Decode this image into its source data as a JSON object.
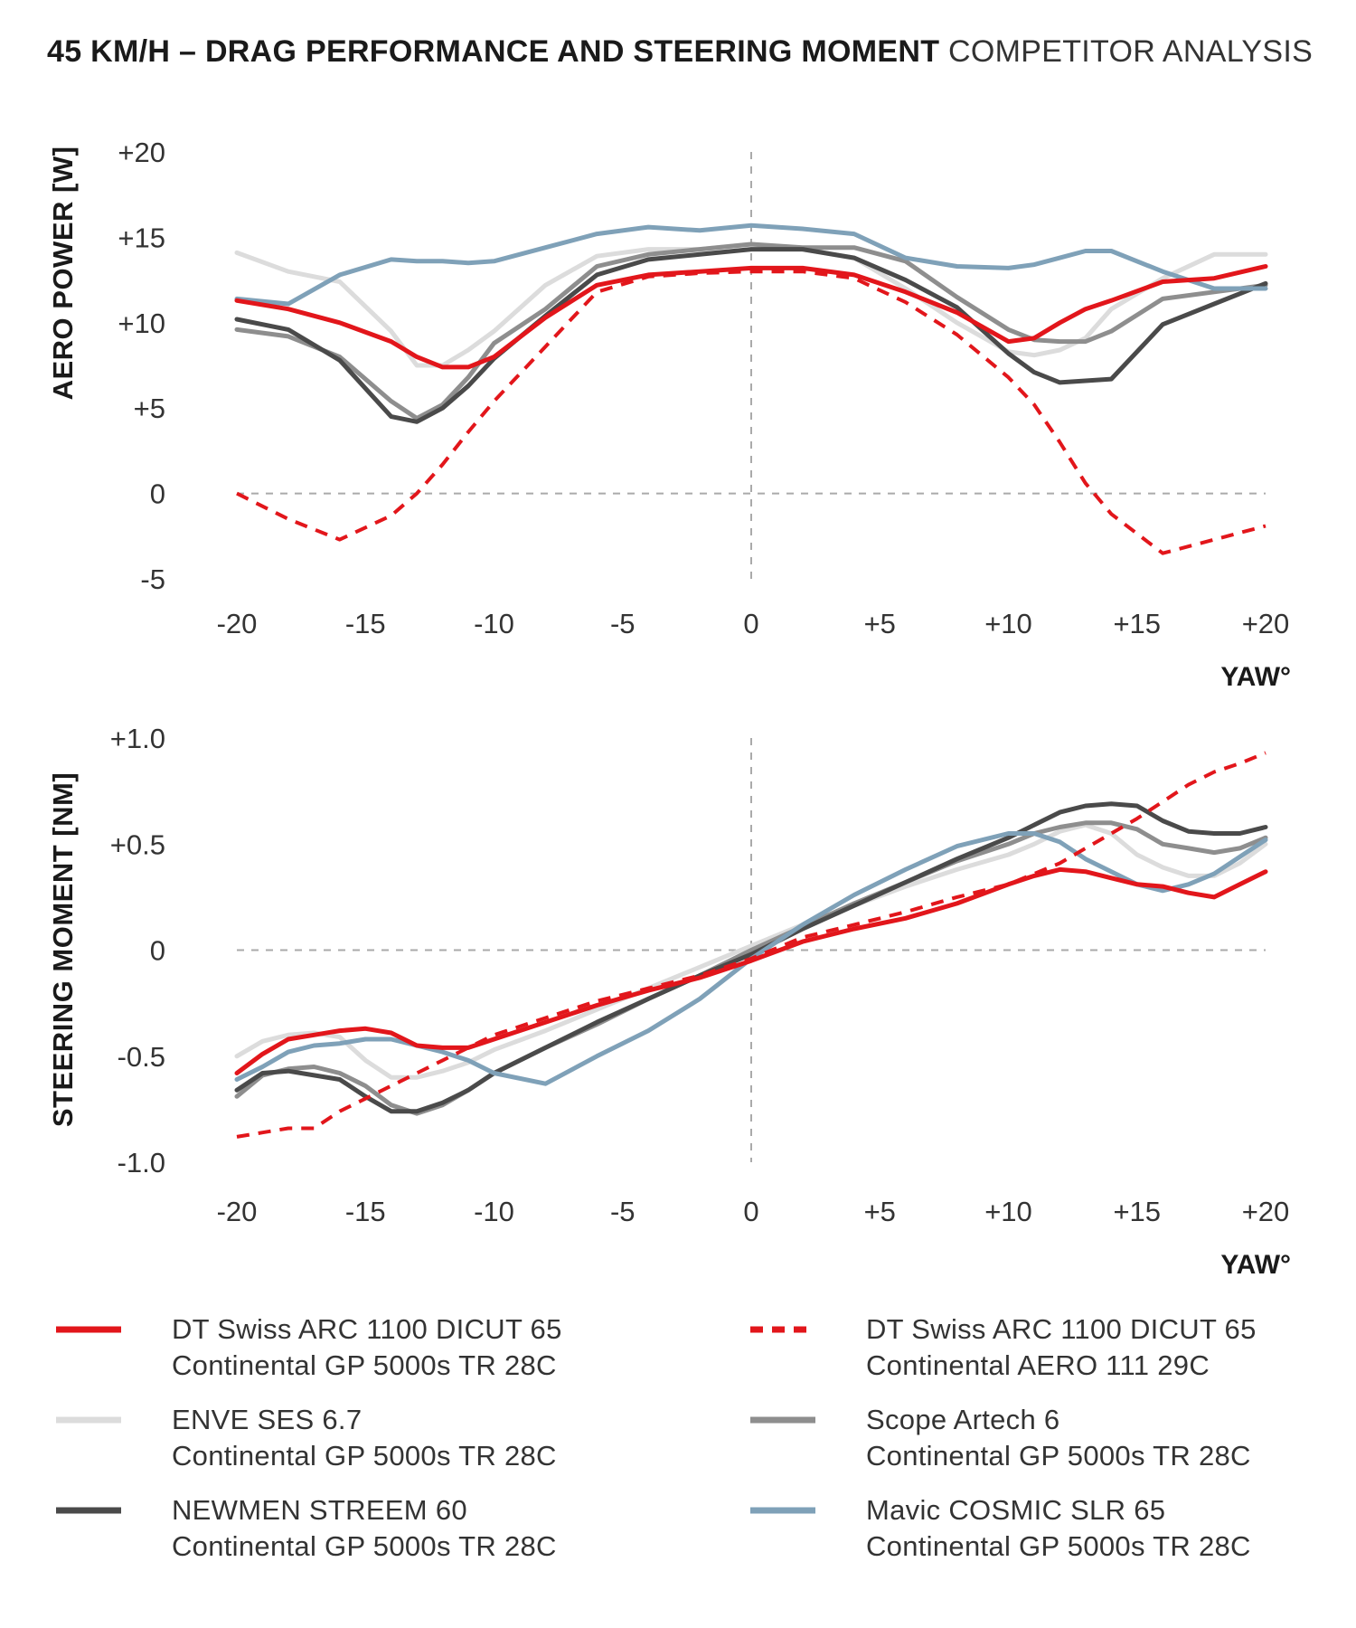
{
  "title": {
    "bold": "45 KM/H – DRAG PERFORMANCE AND STEERING MOMENT",
    "light": "COMPETITOR ANALYSIS"
  },
  "colors": {
    "dt_red": "#e2161b",
    "enve": "#dcdcdc",
    "scope": "#8e8e8e",
    "newmen": "#4a4a4a",
    "mavic": "#7fa1b8",
    "zero_line": "#aaaaaa"
  },
  "legend": [
    {
      "line1": "DT Swiss ARC 1100 DICUT 65",
      "line2": "Continental GP 5000s TR 28C",
      "color": "#e2161b",
      "dashed": false
    },
    {
      "line1": "DT Swiss ARC 1100 DICUT 65",
      "line2": "Continental AERO 111 29C",
      "color": "#e2161b",
      "dashed": true
    },
    {
      "line1": "ENVE SES 6.7",
      "line2": "Continental GP 5000s TR 28C",
      "color": "#dcdcdc",
      "dashed": false
    },
    {
      "line1": "Scope Artech 6",
      "line2": "Continental GP 5000s TR 28C",
      "color": "#8e8e8e",
      "dashed": false
    },
    {
      "line1": "NEWMEN STREEM 60",
      "line2": "Continental GP 5000s TR 28C",
      "color": "#4a4a4a",
      "dashed": false
    },
    {
      "line1": "Mavic COSMIC SLR 65",
      "line2": "Continental GP 5000s TR 28C",
      "color": "#7fa1b8",
      "dashed": false
    }
  ],
  "chart_data": [
    {
      "type": "line",
      "ylabel": "AERO POWER [W]",
      "xlabel": "YAW°",
      "xlim": [
        -20,
        20
      ],
      "ylim": [
        -5,
        20
      ],
      "x_ticks": [
        "-20",
        "-15",
        "-10",
        "-5",
        "0",
        "+5",
        "+10",
        "+15",
        "+20"
      ],
      "y_ticks": [
        "+20",
        "+15",
        "+10",
        "+5",
        "0",
        "-5"
      ],
      "x": [
        -20,
        -18,
        -16,
        -14,
        -13,
        -12,
        -11,
        -10,
        -8,
        -6,
        -4,
        -2,
        0,
        2,
        4,
        6,
        8,
        10,
        11,
        12,
        13,
        14,
        16,
        18,
        20
      ],
      "series": [
        {
          "name": "DT Swiss ARC 1100 DICUT 65 Continental GP 5000s TR 28C",
          "style": "solid",
          "color": "#e2161b",
          "values": [
            11.3,
            10.8,
            10.0,
            8.9,
            8.0,
            7.4,
            7.4,
            8.0,
            10.3,
            12.2,
            12.8,
            13.0,
            13.2,
            13.2,
            12.8,
            11.8,
            10.6,
            8.9,
            9.1,
            10.0,
            10.8,
            11.3,
            12.4,
            12.6,
            13.3
          ]
        },
        {
          "name": "DT Swiss ARC 1100 DICUT 65 Continental AERO 111 29C",
          "style": "dashed",
          "color": "#e2161b",
          "values": [
            0.0,
            -1.5,
            -2.7,
            -1.3,
            0.0,
            1.7,
            3.6,
            5.4,
            8.6,
            11.8,
            12.7,
            12.9,
            13.0,
            13.0,
            12.6,
            11.2,
            9.3,
            6.8,
            5.2,
            3.0,
            0.6,
            -1.2,
            -3.5,
            -2.7,
            -1.9
          ]
        },
        {
          "name": "ENVE SES 6.7 Continental GP 5000s TR 28C",
          "style": "solid",
          "color": "#dcdcdc",
          "values": [
            14.1,
            13.0,
            12.4,
            9.5,
            7.5,
            7.5,
            8.4,
            9.5,
            12.2,
            13.9,
            14.3,
            14.3,
            14.6,
            14.3,
            13.8,
            12.0,
            10.0,
            8.3,
            8.1,
            8.4,
            9.1,
            10.8,
            12.6,
            14.0,
            14.0
          ]
        },
        {
          "name": "Scope Artech 6 Continental GP 5000s TR 28C",
          "style": "solid",
          "color": "#8e8e8e",
          "values": [
            9.6,
            9.2,
            8.0,
            5.4,
            4.4,
            5.2,
            6.8,
            8.8,
            10.8,
            13.3,
            14.0,
            14.3,
            14.6,
            14.4,
            14.4,
            13.6,
            11.5,
            9.6,
            9.0,
            8.9,
            8.9,
            9.5,
            11.4,
            11.8,
            12.2
          ]
        },
        {
          "name": "NEWMEN STREEM 60 Continental GP 5000s TR 28C",
          "style": "solid",
          "color": "#4a4a4a",
          "values": [
            10.2,
            9.6,
            7.8,
            4.5,
            4.2,
            5.0,
            6.3,
            7.9,
            10.4,
            12.8,
            13.7,
            14.0,
            14.3,
            14.3,
            13.8,
            12.5,
            10.9,
            8.2,
            7.1,
            6.5,
            6.6,
            6.7,
            9.9,
            11.1,
            12.3
          ]
        },
        {
          "name": "Mavic COSMIC SLR 65 Continental GP 5000s TR 28C",
          "style": "solid",
          "color": "#7fa1b8",
          "values": [
            11.4,
            11.1,
            12.8,
            13.7,
            13.6,
            13.6,
            13.5,
            13.6,
            14.4,
            15.2,
            15.6,
            15.4,
            15.7,
            15.5,
            15.2,
            13.8,
            13.3,
            13.2,
            13.4,
            13.8,
            14.2,
            14.2,
            13.0,
            12.0,
            12.0
          ]
        }
      ]
    },
    {
      "type": "line",
      "ylabel": "STEERING MOMENT [NM]",
      "xlabel": "YAW°",
      "xlim": [
        -20,
        20
      ],
      "ylim": [
        -1.0,
        1.0
      ],
      "x_ticks": [
        "-20",
        "-15",
        "-10",
        "-5",
        "0",
        "+5",
        "+10",
        "+15",
        "+20"
      ],
      "y_ticks": [
        "+1.0",
        "+0.5",
        "0",
        "-0.5",
        "-1.0"
      ],
      "x": [
        -20,
        -19,
        -18,
        -17,
        -16,
        -15,
        -14,
        -13,
        -12,
        -11,
        -10,
        -8,
        -6,
        -4,
        -2,
        0,
        2,
        4,
        6,
        8,
        10,
        11,
        12,
        13,
        14,
        15,
        16,
        17,
        18,
        19,
        20
      ],
      "series": [
        {
          "name": "DT Swiss ARC 1100 DICUT 65 Continental GP 5000s TR 28C",
          "style": "solid",
          "color": "#e2161b",
          "values": [
            -0.58,
            -0.49,
            -0.42,
            -0.4,
            -0.38,
            -0.37,
            -0.39,
            -0.45,
            -0.46,
            -0.46,
            -0.42,
            -0.34,
            -0.26,
            -0.19,
            -0.13,
            -0.05,
            0.04,
            0.1,
            0.15,
            0.22,
            0.31,
            0.35,
            0.38,
            0.37,
            0.34,
            0.31,
            0.3,
            0.27,
            0.25,
            0.31,
            0.37
          ]
        },
        {
          "name": "DT Swiss ARC 1100 DICUT 65 Continental AERO 111 29C",
          "style": "dashed",
          "color": "#e2161b",
          "values": [
            -0.88,
            -0.86,
            -0.84,
            -0.84,
            -0.76,
            -0.7,
            -0.64,
            -0.58,
            -0.52,
            -0.46,
            -0.4,
            -0.32,
            -0.24,
            -0.18,
            -0.12,
            -0.04,
            0.06,
            0.12,
            0.18,
            0.25,
            0.31,
            0.36,
            0.41,
            0.48,
            0.55,
            0.62,
            0.7,
            0.78,
            0.84,
            0.88,
            0.93
          ]
        },
        {
          "name": "ENVE SES 6.7 Continental GP 5000s TR 28C",
          "style": "solid",
          "color": "#dcdcdc",
          "values": [
            -0.5,
            -0.43,
            -0.4,
            -0.39,
            -0.41,
            -0.52,
            -0.6,
            -0.6,
            -0.57,
            -0.53,
            -0.47,
            -0.38,
            -0.28,
            -0.18,
            -0.08,
            0.02,
            0.12,
            0.21,
            0.3,
            0.38,
            0.45,
            0.5,
            0.56,
            0.59,
            0.55,
            0.45,
            0.39,
            0.35,
            0.35,
            0.41,
            0.5
          ]
        },
        {
          "name": "Scope Artech 6 Continental GP 5000s TR 28C",
          "style": "solid",
          "color": "#8e8e8e",
          "values": [
            -0.69,
            -0.59,
            -0.56,
            -0.55,
            -0.58,
            -0.64,
            -0.73,
            -0.77,
            -0.73,
            -0.66,
            -0.58,
            -0.46,
            -0.35,
            -0.23,
            -0.12,
            0.0,
            0.11,
            0.22,
            0.32,
            0.42,
            0.5,
            0.55,
            0.58,
            0.6,
            0.6,
            0.57,
            0.5,
            0.48,
            0.46,
            0.48,
            0.53
          ]
        },
        {
          "name": "NEWMEN STREEM 60 Continental GP 5000s TR 28C",
          "style": "solid",
          "color": "#4a4a4a",
          "values": [
            -0.66,
            -0.58,
            -0.57,
            -0.59,
            -0.61,
            -0.69,
            -0.76,
            -0.76,
            -0.72,
            -0.66,
            -0.58,
            -0.46,
            -0.34,
            -0.23,
            -0.12,
            -0.02,
            0.1,
            0.21,
            0.32,
            0.43,
            0.53,
            0.59,
            0.65,
            0.68,
            0.69,
            0.68,
            0.61,
            0.56,
            0.55,
            0.55,
            0.58
          ]
        },
        {
          "name": "Mavic COSMIC SLR 65 Continental GP 5000s TR 28C",
          "style": "solid",
          "color": "#7fa1b8",
          "values": [
            -0.61,
            -0.55,
            -0.48,
            -0.45,
            -0.44,
            -0.42,
            -0.42,
            -0.45,
            -0.48,
            -0.52,
            -0.58,
            -0.63,
            -0.5,
            -0.38,
            -0.23,
            -0.04,
            0.12,
            0.26,
            0.38,
            0.49,
            0.55,
            0.55,
            0.51,
            0.43,
            0.37,
            0.31,
            0.28,
            0.31,
            0.36,
            0.44,
            0.52
          ]
        }
      ]
    }
  ]
}
